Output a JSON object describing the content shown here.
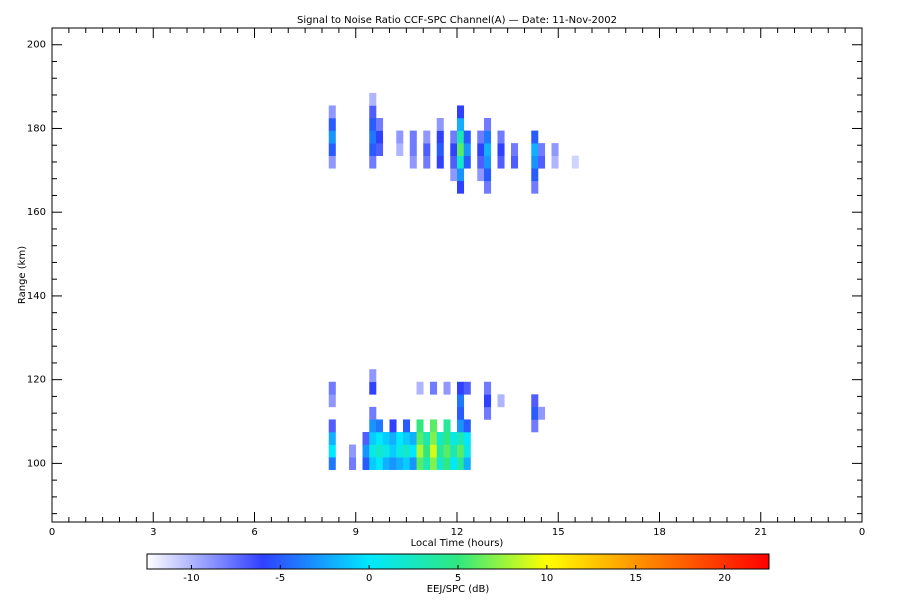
{
  "chart_data": {
    "type": "heatmap",
    "title": "Signal to Noise Ratio CCF-SPC Channel(A) — Date: 11-Nov-2002",
    "xlabel": "Local Time (hours)",
    "ylabel": "Range (km)",
    "xlim": [
      0,
      24
    ],
    "xticks": [
      0,
      3,
      6,
      9,
      12,
      15,
      18,
      21,
      {
        "value": 24,
        "label": "0"
      }
    ],
    "xminor": 6,
    "ylim": [
      86,
      204
    ],
    "yticks": [
      100,
      120,
      140,
      160,
      180,
      200
    ],
    "yminor": 4,
    "clim": [
      -12.5,
      22.5
    ],
    "cticks": [
      -10,
      -5,
      0,
      5,
      10,
      15,
      20
    ],
    "clabel": "EEJ/SPC (dB)",
    "colorscale": [
      [
        -12.5,
        "#ffffff"
      ],
      [
        -6,
        "#3040ff"
      ],
      [
        0,
        "#00e8ff"
      ],
      [
        5,
        "#30e880"
      ],
      [
        10,
        "#ffff00"
      ],
      [
        16,
        "#ff8000"
      ],
      [
        22.5,
        "#ff0000"
      ]
    ],
    "cells": [
      [
        8.2,
        172,
        -9
      ],
      [
        8.2,
        175,
        -5
      ],
      [
        8.2,
        178,
        -3
      ],
      [
        8.2,
        181,
        -5
      ],
      [
        8.2,
        184,
        -9
      ],
      [
        9.4,
        172,
        -8
      ],
      [
        9.4,
        175,
        -5
      ],
      [
        9.4,
        178,
        -4
      ],
      [
        9.4,
        181,
        -5
      ],
      [
        9.4,
        184,
        -7
      ],
      [
        9.4,
        187,
        -10
      ],
      [
        9.6,
        175,
        -7
      ],
      [
        9.6,
        178,
        -6
      ],
      [
        9.6,
        181,
        -8
      ],
      [
        10.2,
        175,
        -10
      ],
      [
        10.2,
        178,
        -9
      ],
      [
        10.6,
        172,
        -9
      ],
      [
        10.6,
        175,
        -8
      ],
      [
        10.6,
        178,
        -8
      ],
      [
        11.0,
        172,
        -8
      ],
      [
        11.0,
        175,
        -7
      ],
      [
        11.0,
        178,
        -9
      ],
      [
        11.4,
        172,
        -6
      ],
      [
        11.4,
        175,
        -5
      ],
      [
        11.4,
        178,
        -6
      ],
      [
        11.4,
        181,
        -9
      ],
      [
        11.8,
        169,
        -9
      ],
      [
        11.8,
        172,
        -7
      ],
      [
        11.8,
        175,
        -6
      ],
      [
        11.8,
        178,
        -8
      ],
      [
        12.0,
        166,
        -6
      ],
      [
        12.0,
        169,
        -3
      ],
      [
        12.0,
        172,
        2
      ],
      [
        12.0,
        175,
        6
      ],
      [
        12.0,
        178,
        3
      ],
      [
        12.0,
        181,
        -2
      ],
      [
        12.0,
        184,
        -6
      ],
      [
        12.2,
        172,
        -5
      ],
      [
        12.2,
        175,
        -3
      ],
      [
        12.2,
        178,
        -5
      ],
      [
        12.6,
        169,
        -9
      ],
      [
        12.6,
        172,
        -7
      ],
      [
        12.6,
        175,
        -6
      ],
      [
        12.6,
        178,
        -8
      ],
      [
        12.8,
        166,
        -8
      ],
      [
        12.8,
        169,
        -5
      ],
      [
        12.8,
        172,
        -3
      ],
      [
        12.8,
        175,
        -2
      ],
      [
        12.8,
        178,
        -4
      ],
      [
        12.8,
        181,
        -8
      ],
      [
        13.2,
        172,
        -7
      ],
      [
        13.2,
        175,
        -6
      ],
      [
        13.2,
        178,
        -8
      ],
      [
        13.6,
        172,
        -7
      ],
      [
        13.6,
        175,
        -8
      ],
      [
        14.2,
        166,
        -8
      ],
      [
        14.2,
        169,
        -5
      ],
      [
        14.2,
        172,
        -3
      ],
      [
        14.2,
        175,
        -2
      ],
      [
        14.2,
        178,
        -5
      ],
      [
        14.4,
        172,
        -7
      ],
      [
        14.4,
        175,
        -8
      ],
      [
        14.8,
        172,
        -10
      ],
      [
        14.8,
        175,
        -9
      ],
      [
        15.4,
        172,
        -11
      ],
      [
        8.2,
        100,
        -4
      ],
      [
        8.2,
        103,
        0
      ],
      [
        8.2,
        106,
        -2
      ],
      [
        8.2,
        109,
        -7
      ],
      [
        8.2,
        115,
        -9
      ],
      [
        8.2,
        118,
        -8
      ],
      [
        8.8,
        100,
        -8
      ],
      [
        8.8,
        103,
        -9
      ],
      [
        9.2,
        100,
        -5
      ],
      [
        9.2,
        103,
        -3
      ],
      [
        9.2,
        106,
        -7
      ],
      [
        9.4,
        100,
        -1
      ],
      [
        9.4,
        103,
        1
      ],
      [
        9.4,
        106,
        -1
      ],
      [
        9.4,
        109,
        -3
      ],
      [
        9.4,
        112,
        -8
      ],
      [
        9.4,
        118,
        -6
      ],
      [
        9.4,
        121,
        -9
      ],
      [
        9.6,
        100,
        0
      ],
      [
        9.6,
        103,
        2
      ],
      [
        9.6,
        106,
        0
      ],
      [
        9.6,
        109,
        -4
      ],
      [
        9.8,
        100,
        -2
      ],
      [
        9.8,
        103,
        1
      ],
      [
        9.8,
        106,
        -1
      ],
      [
        10.0,
        100,
        -3
      ],
      [
        10.0,
        103,
        -1
      ],
      [
        10.0,
        106,
        -2
      ],
      [
        10.0,
        109,
        -6
      ],
      [
        10.2,
        100,
        -2
      ],
      [
        10.2,
        103,
        1
      ],
      [
        10.2,
        106,
        0
      ],
      [
        10.4,
        100,
        -1
      ],
      [
        10.4,
        103,
        2
      ],
      [
        10.4,
        106,
        -1
      ],
      [
        10.4,
        109,
        -5
      ],
      [
        10.6,
        100,
        -3
      ],
      [
        10.6,
        103,
        0
      ],
      [
        10.6,
        106,
        -2
      ],
      [
        10.8,
        100,
        6
      ],
      [
        10.8,
        103,
        8
      ],
      [
        10.8,
        106,
        6
      ],
      [
        10.8,
        109,
        5
      ],
      [
        10.8,
        118,
        -10
      ],
      [
        11.0,
        100,
        3
      ],
      [
        11.0,
        103,
        5
      ],
      [
        11.0,
        106,
        3
      ],
      [
        11.2,
        100,
        7
      ],
      [
        11.2,
        103,
        9
      ],
      [
        11.2,
        106,
        7
      ],
      [
        11.2,
        109,
        6
      ],
      [
        11.2,
        118,
        -8
      ],
      [
        11.4,
        100,
        2
      ],
      [
        11.4,
        103,
        4
      ],
      [
        11.4,
        106,
        2
      ],
      [
        11.6,
        100,
        5
      ],
      [
        11.6,
        103,
        6
      ],
      [
        11.6,
        106,
        5
      ],
      [
        11.6,
        109,
        4
      ],
      [
        11.6,
        118,
        -9
      ],
      [
        11.8,
        100,
        0
      ],
      [
        11.8,
        103,
        3
      ],
      [
        11.8,
        106,
        1
      ],
      [
        12.0,
        100,
        4
      ],
      [
        12.0,
        103,
        6
      ],
      [
        12.0,
        106,
        3
      ],
      [
        12.0,
        109,
        -3
      ],
      [
        12.0,
        112,
        -5
      ],
      [
        12.0,
        115,
        -4
      ],
      [
        12.0,
        118,
        -6
      ],
      [
        12.2,
        100,
        -2
      ],
      [
        12.2,
        103,
        1
      ],
      [
        12.2,
        106,
        0
      ],
      [
        12.2,
        109,
        -5
      ],
      [
        12.2,
        118,
        -7
      ],
      [
        12.8,
        112,
        -8
      ],
      [
        12.8,
        115,
        -6
      ],
      [
        12.8,
        118,
        -8
      ],
      [
        13.2,
        115,
        -10
      ],
      [
        14.2,
        109,
        -8
      ],
      [
        14.2,
        112,
        -5
      ],
      [
        14.2,
        115,
        -7
      ],
      [
        14.4,
        112,
        -9
      ]
    ]
  }
}
